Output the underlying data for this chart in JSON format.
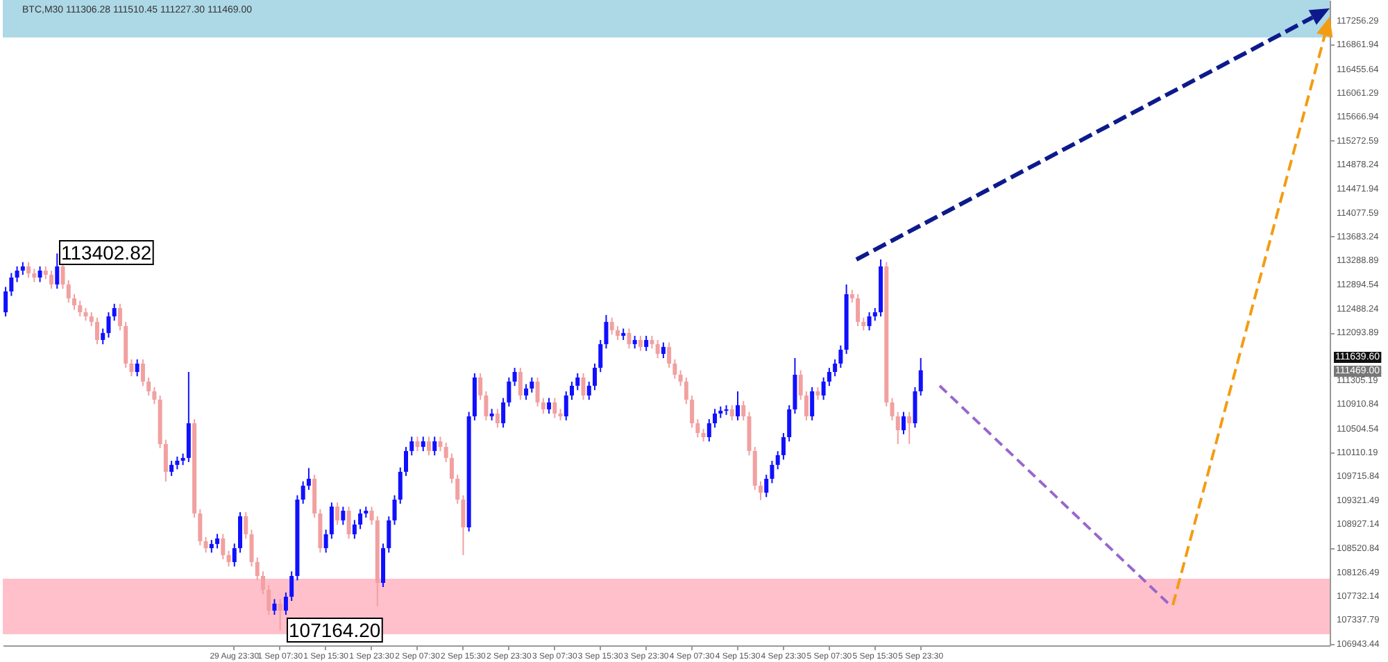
{
  "chart_data": {
    "type": "candlestick",
    "title": "BTC,M30 111306.28 111510.45 111227.30 111469.00",
    "categories": [
      null,
      null,
      null,
      null,
      null,
      null,
      null,
      null,
      null,
      null,
      null,
      null,
      null,
      null,
      null,
      null,
      null,
      null,
      null,
      null,
      null,
      null,
      null,
      null,
      null,
      null,
      null,
      null,
      null,
      null,
      null,
      null,
      null,
      null,
      null,
      null,
      null,
      null,
      null,
      null,
      "29 Aug 23:30",
      null,
      null,
      null,
      null,
      null,
      null,
      null,
      "1 Sep 07:30",
      null,
      null,
      null,
      null,
      null,
      null,
      null,
      "1 Sep 15:30",
      null,
      null,
      null,
      null,
      null,
      null,
      null,
      "1 Sep 23:30",
      null,
      null,
      null,
      null,
      null,
      null,
      null,
      "2 Sep 07:30",
      null,
      null,
      null,
      null,
      null,
      null,
      null,
      "2 Sep 15:30",
      null,
      null,
      null,
      null,
      null,
      null,
      null,
      "2 Sep 23:30",
      null,
      null,
      null,
      null,
      null,
      null,
      null,
      "3 Sep 07:30",
      null,
      null,
      null,
      null,
      null,
      null,
      null,
      "3 Sep 15:30",
      null,
      null,
      null,
      null,
      null,
      null,
      null,
      "3 Sep 23:30",
      null,
      null,
      null,
      null,
      null,
      null,
      null,
      "4 Sep 07:30",
      null,
      null,
      null,
      null,
      null,
      null,
      null,
      "4 Sep 15:30",
      null,
      null,
      null,
      null,
      null,
      null,
      null,
      "4 Sep 23:30",
      null,
      null,
      null,
      null,
      null,
      null,
      null,
      "5 Sep 07:30",
      null,
      null,
      null,
      null,
      null,
      null,
      null,
      "5 Sep 15:30",
      null,
      null,
      null,
      null,
      null,
      null,
      null,
      "5 Sep 23:30",
      null,
      null,
      null,
      null,
      null,
      null,
      null,
      null,
      null,
      null,
      null,
      null,
      null,
      null,
      null,
      null,
      null,
      null,
      null,
      null,
      null,
      null,
      null,
      null,
      null,
      null,
      null,
      null,
      null,
      null,
      null,
      null,
      null,
      null,
      null,
      null,
      null,
      null,
      null,
      null,
      null,
      null,
      null,
      null,
      null,
      null,
      null,
      null,
      null,
      null,
      null,
      null,
      null,
      null,
      null,
      null,
      null,
      null,
      null,
      null,
      null,
      null,
      null,
      null,
      null,
      null,
      null,
      null,
      null,
      null,
      null
    ],
    "ohlc": [
      [
        112430,
        112850,
        112360,
        112775
      ],
      [
        112775,
        113080,
        112700,
        113005
      ],
      [
        113005,
        113190,
        112930,
        113120
      ],
      [
        113120,
        113260,
        113050,
        113189
      ],
      [
        113189,
        113260,
        113000,
        113074
      ],
      [
        113074,
        113150,
        112930,
        113005
      ],
      [
        113005,
        113190,
        112930,
        113120
      ],
      [
        113120,
        113190,
        112980,
        113051
      ],
      [
        113051,
        113120,
        112820,
        112890
      ],
      [
        112890,
        113402.82,
        112820,
        113189
      ],
      [
        113189,
        113260,
        112820,
        112890
      ],
      [
        112890,
        112960,
        112590,
        112660
      ],
      [
        112660,
        112730,
        112470,
        112545
      ],
      [
        112545,
        112620,
        112360,
        112430
      ],
      [
        112430,
        112500,
        112290,
        112362
      ],
      [
        112362,
        112430,
        112200,
        112270
      ],
      [
        112270,
        112340,
        111900,
        111971
      ],
      [
        111971,
        112160,
        111900,
        112086
      ],
      [
        112086,
        112430,
        112010,
        112362
      ],
      [
        112362,
        112570,
        112290,
        112499
      ],
      [
        112499,
        112570,
        112130,
        112201
      ],
      [
        112201,
        112270,
        111510,
        111580
      ],
      [
        111580,
        111650,
        111370,
        111442
      ],
      [
        111442,
        111650,
        111370,
        111580
      ],
      [
        111580,
        111650,
        111210,
        111282
      ],
      [
        111282,
        111350,
        111050,
        111121
      ],
      [
        111121,
        111190,
        110910,
        110983
      ],
      [
        110983,
        111050,
        110180,
        110247
      ],
      [
        110247,
        110320,
        109627,
        109788
      ],
      [
        109788,
        109970,
        109720,
        109903
      ],
      [
        109903,
        110040,
        109830,
        109972
      ],
      [
        109972,
        110090,
        109900,
        110018
      ],
      [
        110018,
        111442,
        109950,
        110592
      ],
      [
        110592,
        110660,
        109030,
        109098
      ],
      [
        109098,
        109170,
        108570,
        108639
      ],
      [
        108639,
        108710,
        108450,
        108524
      ],
      [
        108524,
        108660,
        108450,
        108593
      ],
      [
        108593,
        108760,
        108520,
        108685
      ],
      [
        108685,
        108760,
        108340,
        108409
      ],
      [
        108409,
        108480,
        108220,
        108294
      ],
      [
        108294,
        108600,
        108220,
        108524
      ],
      [
        108524,
        109120,
        108450,
        109052
      ],
      [
        109052,
        109120,
        108680,
        108754
      ],
      [
        108754,
        108830,
        108220,
        108294
      ],
      [
        108294,
        108370,
        107990,
        108064
      ],
      [
        108064,
        108140,
        107760,
        107835
      ],
      [
        107835,
        107910,
        107420,
        107490
      ],
      [
        107490,
        107680,
        107420,
        107605
      ],
      [
        107605,
        107680,
        107164.2,
        107490
      ],
      [
        107490,
        107790,
        107420,
        107720
      ],
      [
        107720,
        108140,
        107650,
        108064
      ],
      [
        108064,
        109400,
        107990,
        109328
      ],
      [
        109328,
        109630,
        109260,
        109558
      ],
      [
        109558,
        109850,
        109490,
        109673
      ],
      [
        109673,
        109740,
        109030,
        109098
      ],
      [
        109098,
        109170,
        108450,
        108524
      ],
      [
        108524,
        108830,
        108450,
        108754
      ],
      [
        108754,
        109280,
        108680,
        109213
      ],
      [
        109213,
        109280,
        108910,
        108984
      ],
      [
        108984,
        109210,
        108910,
        109144
      ],
      [
        109144,
        109210,
        108680,
        108754
      ],
      [
        108754,
        108990,
        108680,
        108915
      ],
      [
        108915,
        109170,
        108840,
        109098
      ],
      [
        109098,
        109210,
        109030,
        109144
      ],
      [
        109144,
        109210,
        108910,
        108984
      ],
      [
        108984,
        109050,
        107559,
        107949
      ],
      [
        107949,
        108600,
        107880,
        108524
      ],
      [
        108524,
        109050,
        108450,
        108984
      ],
      [
        108984,
        109400,
        108910,
        109328
      ],
      [
        109328,
        109860,
        109260,
        109788
      ],
      [
        109788,
        110200,
        109720,
        110133
      ],
      [
        110133,
        110370,
        110060,
        110293
      ],
      [
        110293,
        110370,
        110130,
        110201
      ],
      [
        110201,
        110370,
        110130,
        110293
      ],
      [
        110293,
        110370,
        110060,
        110133
      ],
      [
        110133,
        110370,
        110060,
        110293
      ],
      [
        110293,
        110370,
        110130,
        110201
      ],
      [
        110201,
        110270,
        109950,
        110018
      ],
      [
        110018,
        110090,
        109600,
        109673
      ],
      [
        109673,
        109740,
        109260,
        109328
      ],
      [
        109328,
        109400,
        108409,
        108869
      ],
      [
        108869,
        110780,
        108800,
        110707
      ],
      [
        110707,
        111420,
        110640,
        111350
      ],
      [
        111350,
        111420,
        110980,
        111052
      ],
      [
        111052,
        111120,
        110640,
        110707
      ],
      [
        110707,
        110830,
        110640,
        110753
      ],
      [
        110753,
        110830,
        110520,
        110592
      ],
      [
        110592,
        111010,
        110520,
        110937
      ],
      [
        110937,
        111350,
        110870,
        111282
      ],
      [
        111282,
        111510,
        111210,
        111442
      ],
      [
        111442,
        111510,
        110980,
        111052
      ],
      [
        111052,
        111240,
        110980,
        111167
      ],
      [
        111167,
        111350,
        111100,
        111282
      ],
      [
        111282,
        111350,
        110870,
        110937
      ],
      [
        110937,
        111010,
        110750,
        110822
      ],
      [
        110822,
        111010,
        110750,
        110937
      ],
      [
        110937,
        111010,
        110680,
        110753
      ],
      [
        110753,
        110830,
        110640,
        110707
      ],
      [
        110707,
        111120,
        110640,
        111052
      ],
      [
        111052,
        111280,
        110980,
        111213
      ],
      [
        111213,
        111420,
        111140,
        111350
      ],
      [
        111350,
        111420,
        110980,
        111052
      ],
      [
        111052,
        111280,
        110980,
        111213
      ],
      [
        111213,
        111580,
        111140,
        111511
      ],
      [
        111511,
        111970,
        111440,
        111902
      ],
      [
        111902,
        112384,
        111830,
        112270
      ],
      [
        112270,
        112340,
        112060,
        112132
      ],
      [
        112132,
        112200,
        111970,
        112040
      ],
      [
        112040,
        112160,
        111970,
        112086
      ],
      [
        112086,
        112160,
        111830,
        111902
      ],
      [
        111902,
        112040,
        111830,
        111971
      ],
      [
        111971,
        112040,
        111790,
        111856
      ],
      [
        111856,
        112040,
        111790,
        111971
      ],
      [
        111971,
        112040,
        111830,
        111902
      ],
      [
        111902,
        111970,
        111670,
        111741
      ],
      [
        111741,
        111930,
        111670,
        111856
      ],
      [
        111856,
        111930,
        111510,
        111580
      ],
      [
        111580,
        111650,
        111330,
        111396
      ],
      [
        111396,
        111470,
        111210,
        111282
      ],
      [
        111282,
        111350,
        110910,
        110983
      ],
      [
        110983,
        111050,
        110520,
        110592
      ],
      [
        110592,
        110660,
        110360,
        110431
      ],
      [
        110431,
        110500,
        110290,
        110362
      ],
      [
        110362,
        110660,
        110290,
        110592
      ],
      [
        110592,
        110830,
        110520,
        110753
      ],
      [
        110753,
        110870,
        110680,
        110799
      ],
      [
        110799,
        110890,
        110730,
        110822
      ],
      [
        110822,
        110890,
        110640,
        110707
      ],
      [
        110707,
        111120,
        110640,
        110891
      ],
      [
        110891,
        110960,
        110640,
        110707
      ],
      [
        110707,
        110780,
        110060,
        110133
      ],
      [
        110133,
        110200,
        109490,
        109558
      ],
      [
        109558,
        109630,
        109320,
        109443
      ],
      [
        109443,
        109740,
        109370,
        109673
      ],
      [
        109673,
        109970,
        109600,
        109903
      ],
      [
        109903,
        110130,
        109830,
        110064
      ],
      [
        110064,
        110430,
        109990,
        110362
      ],
      [
        110362,
        110890,
        110290,
        110822
      ],
      [
        110822,
        111672,
        110750,
        111396
      ],
      [
        111396,
        111470,
        110980,
        111052
      ],
      [
        111052,
        111120,
        110640,
        110707
      ],
      [
        110707,
        111190,
        110640,
        111121
      ],
      [
        111121,
        111190,
        110980,
        111052
      ],
      [
        111052,
        111350,
        110980,
        111282
      ],
      [
        111282,
        111510,
        111210,
        111442
      ],
      [
        111442,
        111650,
        111370,
        111580
      ],
      [
        111580,
        111880,
        111510,
        111810
      ],
      [
        111810,
        112890,
        111740,
        112729
      ],
      [
        112729,
        112800,
        112590,
        112660
      ],
      [
        112660,
        112730,
        112200,
        112270
      ],
      [
        112270,
        112340,
        112130,
        112201
      ],
      [
        112201,
        112430,
        112130,
        112362
      ],
      [
        112362,
        112500,
        112290,
        112430
      ],
      [
        112430,
        113304,
        112360,
        113189
      ],
      [
        113189,
        113260,
        110870,
        110937
      ],
      [
        110937,
        111010,
        110640,
        110707
      ],
      [
        110707,
        110780,
        110247,
        110477
      ],
      [
        110477,
        110780,
        110410,
        110707
      ],
      [
        110707,
        110780,
        110250,
        110592
      ],
      [
        110592,
        111190,
        110520,
        111121
      ],
      [
        111121,
        111672,
        111050,
        111469
      ],
      null,
      null,
      null,
      null,
      null,
      null,
      null,
      null,
      null,
      null,
      null,
      null,
      null,
      null,
      null,
      null,
      null,
      null,
      null,
      null,
      null,
      null,
      null,
      null,
      null,
      null,
      null,
      null,
      null,
      null,
      null,
      null,
      null,
      null,
      null,
      null,
      null,
      null,
      null,
      null,
      null,
      null,
      null,
      null,
      null,
      null,
      null,
      null,
      null,
      null,
      null,
      null,
      null,
      null,
      null,
      null,
      null,
      null,
      null,
      null,
      null,
      null,
      null,
      null,
      null,
      null,
      null,
      null,
      null,
      null,
      null
    ],
    "colors": [
      "#1010ff",
      "#1010ff",
      "#1010ff",
      "#1010ff",
      "#f2a0a0",
      "#f2a0a0",
      "#1010ff",
      "#f2a0a0",
      "#f2a0a0",
      "#1010ff",
      "#f2a0a0",
      "#f2a0a0",
      "#f2a0a0",
      "#f2a0a0",
      "#f2a0a0",
      "#f2a0a0",
      "#f2a0a0",
      "#1010ff",
      "#1010ff",
      "#1010ff",
      "#f2a0a0",
      "#f2a0a0",
      "#f2a0a0",
      "#1010ff",
      "#f2a0a0",
      "#f2a0a0",
      "#f2a0a0",
      "#f2a0a0",
      "#f2a0a0",
      "#1010ff",
      "#1010ff",
      "#1010ff",
      "#1010ff",
      "#f2a0a0",
      "#f2a0a0",
      "#f2a0a0",
      "#1010ff",
      "#1010ff",
      "#f2a0a0",
      "#f2a0a0",
      "#1010ff",
      "#1010ff",
      "#f2a0a0",
      "#f2a0a0",
      "#f2a0a0",
      "#f2a0a0",
      "#f2a0a0",
      "#1010ff",
      "#f2a0a0",
      "#1010ff",
      "#1010ff",
      "#1010ff",
      "#1010ff",
      "#1010ff",
      "#f2a0a0",
      "#f2a0a0",
      "#1010ff",
      "#1010ff",
      "#f2a0a0",
      "#1010ff",
      "#f2a0a0",
      "#1010ff",
      "#1010ff",
      "#1010ff",
      "#f2a0a0",
      "#f2a0a0",
      "#1010ff",
      "#1010ff",
      "#1010ff",
      "#1010ff",
      "#1010ff",
      "#1010ff",
      "#f2a0a0",
      "#1010ff",
      "#f2a0a0",
      "#1010ff",
      "#f2a0a0",
      "#f2a0a0",
      "#f2a0a0",
      "#f2a0a0",
      "#f2a0a0",
      "#1010ff",
      "#1010ff",
      "#f2a0a0",
      "#f2a0a0",
      "#1010ff",
      "#f2a0a0",
      "#1010ff",
      "#1010ff",
      "#1010ff",
      "#f2a0a0",
      "#1010ff",
      "#1010ff",
      "#f2a0a0",
      "#f2a0a0",
      "#1010ff",
      "#f2a0a0",
      "#f2a0a0",
      "#1010ff",
      "#1010ff",
      "#1010ff",
      "#f2a0a0",
      "#1010ff",
      "#1010ff",
      "#1010ff",
      "#1010ff",
      "#f2a0a0",
      "#f2a0a0",
      "#1010ff",
      "#f2a0a0",
      "#1010ff",
      "#f2a0a0",
      "#1010ff",
      "#f2a0a0",
      "#f2a0a0",
      "#1010ff",
      "#f2a0a0",
      "#f2a0a0",
      "#f2a0a0",
      "#f2a0a0",
      "#f2a0a0",
      "#f2a0a0",
      "#f2a0a0",
      "#1010ff",
      "#1010ff",
      "#1010ff",
      "#1010ff",
      "#f2a0a0",
      "#1010ff",
      "#f2a0a0",
      "#f2a0a0",
      "#f2a0a0",
      "#f2a0a0",
      "#1010ff",
      "#1010ff",
      "#1010ff",
      "#1010ff",
      "#1010ff",
      "#1010ff",
      "#f2a0a0",
      "#f2a0a0",
      "#1010ff",
      "#f2a0a0",
      "#1010ff",
      "#1010ff",
      "#1010ff",
      "#1010ff",
      "#1010ff",
      "#f2a0a0",
      "#f2a0a0",
      "#f2a0a0",
      "#1010ff",
      "#1010ff",
      "#1010ff",
      "#f2a0a0",
      "#f2a0a0",
      "#f2a0a0",
      "#1010ff",
      "#f2a0a0",
      "#1010ff",
      "#1010ff",
      null,
      null,
      null,
      null,
      null,
      null,
      null,
      null,
      null,
      null,
      null,
      null,
      null,
      null,
      null,
      null,
      null,
      null,
      null,
      null,
      null,
      null,
      null,
      null,
      null,
      null,
      null,
      null,
      null,
      null,
      null,
      null,
      null,
      null,
      null,
      null,
      null,
      null,
      null,
      null,
      null,
      null,
      null,
      null,
      null,
      null,
      null,
      null,
      null,
      null,
      null,
      null,
      null,
      null,
      null,
      null,
      null,
      null,
      null,
      null,
      null,
      null,
      null,
      null,
      null,
      null,
      null,
      null,
      null,
      null,
      null
    ],
    "ylim": [
      106915,
      117600
    ],
    "yticks": [
      117256.29,
      116861.94,
      116455.64,
      116061.29,
      115666.94,
      115272.59,
      114878.24,
      114471.94,
      114077.59,
      113683.24,
      113288.89,
      112894.54,
      112488.24,
      112093.89,
      111305.19,
      110910.84,
      110504.54,
      110110.19,
      109715.84,
      109321.49,
      108927.14,
      108520.84,
      108126.49,
      107732.14,
      107337.79,
      106943.44
    ],
    "bands": [
      {
        "axis": "y",
        "from": 116980,
        "to": 117600,
        "color": "#add8e6"
      },
      {
        "axis": "y",
        "from": 107099,
        "to": 108018,
        "color": "#ffc0cb"
      }
    ],
    "annotations": [
      "113402.82",
      "107164.20",
      "111639.60",
      "111469.00"
    ]
  }
}
